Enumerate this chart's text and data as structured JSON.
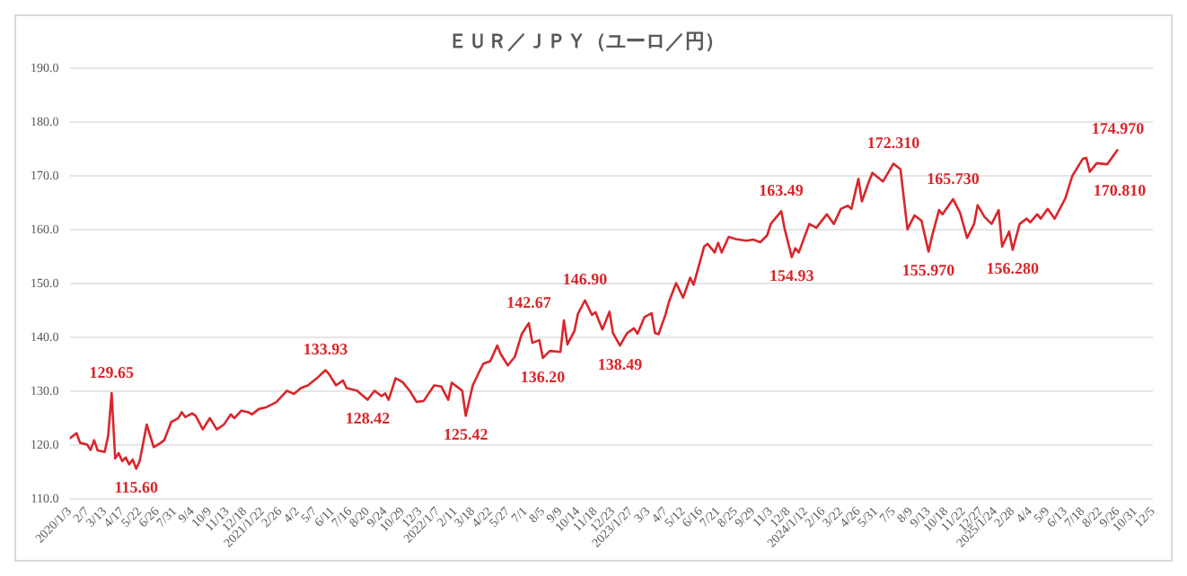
{
  "chart_data": {
    "type": "line",
    "title": "ＥＵＲ／ＪＰＹ（ユーロ／円）",
    "series": [
      {
        "color": "#d9262b",
        "x": [
          "2020-01-03",
          "2020-01-17",
          "2020-01-24",
          "2020-02-07",
          "2020-02-14",
          "2020-02-21",
          "2020-02-28",
          "2020-03-13",
          "2020-03-20",
          "2020-03-27",
          "2020-04-03",
          "2020-04-10",
          "2020-04-17",
          "2020-04-24",
          "2020-05-01",
          "2020-05-08",
          "2020-05-15",
          "2020-05-22",
          "2020-06-05",
          "2020-06-19",
          "2020-07-03",
          "2020-07-10",
          "2020-07-24",
          "2020-08-07",
          "2020-08-14",
          "2020-08-21",
          "2020-09-04",
          "2020-09-11",
          "2020-09-25",
          "2020-10-09",
          "2020-10-23",
          "2020-11-06",
          "2020-11-20",
          "2020-11-27",
          "2020-12-11",
          "2020-12-25",
          "2021-01-01",
          "2021-01-15",
          "2021-01-29",
          "2021-02-19",
          "2021-03-12",
          "2021-03-26",
          "2021-04-09",
          "2021-04-23",
          "2021-05-14",
          "2021-05-28",
          "2021-06-04",
          "2021-06-18",
          "2021-07-02",
          "2021-07-09",
          "2021-07-30",
          "2021-08-20",
          "2021-09-03",
          "2021-09-17",
          "2021-09-24",
          "2021-10-01",
          "2021-10-15",
          "2021-10-29",
          "2021-11-12",
          "2021-11-26",
          "2021-12-10",
          "2021-12-31",
          "2022-01-14",
          "2022-01-28",
          "2022-02-04",
          "2022-02-25",
          "2022-03-04",
          "2022-03-18",
          "2022-04-01",
          "2022-04-08",
          "2022-04-22",
          "2022-05-06",
          "2022-05-13",
          "2022-05-27",
          "2022-06-10",
          "2022-06-24",
          "2022-07-08",
          "2022-07-15",
          "2022-07-29",
          "2022-08-05",
          "2022-08-19",
          "2022-09-09",
          "2022-09-16",
          "2022-09-23",
          "2022-10-07",
          "2022-10-14",
          "2022-10-28",
          "2022-11-11",
          "2022-11-18",
          "2022-12-02",
          "2022-12-16",
          "2022-12-23",
          "2023-01-06",
          "2023-01-20",
          "2023-02-03",
          "2023-02-10",
          "2023-02-24",
          "2023-03-10",
          "2023-03-17",
          "2023-03-24",
          "2023-04-07",
          "2023-04-14",
          "2023-04-28",
          "2023-05-12",
          "2023-05-26",
          "2023-06-02",
          "2023-06-23",
          "2023-06-30",
          "2023-07-14",
          "2023-07-21",
          "2023-07-28",
          "2023-08-11",
          "2023-08-25",
          "2023-09-15",
          "2023-09-29",
          "2023-10-13",
          "2023-10-27",
          "2023-11-03",
          "2023-11-24",
          "2023-12-01",
          "2023-12-15",
          "2023-12-22",
          "2023-12-29",
          "2024-01-19",
          "2024-02-02",
          "2024-02-23",
          "2024-03-08",
          "2024-03-22",
          "2024-04-05",
          "2024-04-12",
          "2024-04-26",
          "2024-05-03",
          "2024-05-17",
          "2024-05-24",
          "2024-06-14",
          "2024-07-05",
          "2024-07-19",
          "2024-08-02",
          "2024-08-16",
          "2024-08-30",
          "2024-09-13",
          "2024-09-20",
          "2024-10-04",
          "2024-10-11",
          "2024-11-01",
          "2024-11-15",
          "2024-11-29",
          "2024-12-13",
          "2024-12-20",
          "2025-01-03",
          "2025-01-17",
          "2025-01-31",
          "2025-02-07",
          "2025-02-21",
          "2025-02-28",
          "2025-03-14",
          "2025-03-28",
          "2025-04-04",
          "2025-04-18",
          "2025-04-25",
          "2025-05-09",
          "2025-05-23",
          "2025-06-13",
          "2025-06-27",
          "2025-07-18",
          "2025-07-25",
          "2025-08-01",
          "2025-08-15",
          "2025-09-05",
          "2025-09-26"
        ],
        "values": [
          121.2,
          122.2,
          120.4,
          120.1,
          119.1,
          120.9,
          119.0,
          118.7,
          121.7,
          129.65,
          117.5,
          118.5,
          117.0,
          117.7,
          116.4,
          117.3,
          115.6,
          117.0,
          123.8,
          119.6,
          120.4,
          120.9,
          124.3,
          125.0,
          126.1,
          125.2,
          125.9,
          125.4,
          122.9,
          125.0,
          122.9,
          123.8,
          125.7,
          125.0,
          126.4,
          126.1,
          125.7,
          126.7,
          127.0,
          128.0,
          130.1,
          129.5,
          130.6,
          131.1,
          132.7,
          133.93,
          133.2,
          131.1,
          132.0,
          130.6,
          130.1,
          128.42,
          130.1,
          129.1,
          129.6,
          128.4,
          132.4,
          131.7,
          130.1,
          128.0,
          128.2,
          131.1,
          130.9,
          128.4,
          131.6,
          130.1,
          125.42,
          131.1,
          133.8,
          135.1,
          135.6,
          138.5,
          136.9,
          134.8,
          136.4,
          140.7,
          142.67,
          139.0,
          139.5,
          136.2,
          137.5,
          137.3,
          143.2,
          138.7,
          141.2,
          144.4,
          146.9,
          144.2,
          144.7,
          141.5,
          144.8,
          140.8,
          138.49,
          140.8,
          141.7,
          140.7,
          143.8,
          144.5,
          140.8,
          140.6,
          144.3,
          146.7,
          150.1,
          147.4,
          151.1,
          149.8,
          156.9,
          157.4,
          155.8,
          157.6,
          155.8,
          158.7,
          158.3,
          158.0,
          158.2,
          157.7,
          159.0,
          161.1,
          163.49,
          160.1,
          154.93,
          156.6,
          155.8,
          161.1,
          160.4,
          162.9,
          161.1,
          163.9,
          164.5,
          163.9,
          169.5,
          165.3,
          169.0,
          170.6,
          169.0,
          172.31,
          171.3,
          160.1,
          162.7,
          161.7,
          155.97,
          158.8,
          163.7,
          162.9,
          165.73,
          163.2,
          158.5,
          161.1,
          164.6,
          162.4,
          161.1,
          163.7,
          156.9,
          159.7,
          156.28,
          161.1,
          162.1,
          161.4,
          162.9,
          162.1,
          163.9,
          162.1,
          165.8,
          170.0,
          173.2,
          173.4,
          170.81,
          172.4,
          172.2,
          174.97
        ]
      }
    ],
    "annotations": [
      {
        "text": "129.65",
        "x": "2020-03-27",
        "y": 129.65
      },
      {
        "text": "115.60",
        "x": "2020-05-15",
        "y": 115.6
      },
      {
        "text": "133.93",
        "x": "2021-05-28",
        "y": 133.93
      },
      {
        "text": "128.42",
        "x": "2021-08-20",
        "y": 128.42
      },
      {
        "text": "125.42",
        "x": "2022-03-04",
        "y": 125.42
      },
      {
        "text": "142.67",
        "x": "2022-07-08",
        "y": 142.67
      },
      {
        "text": "136.20",
        "x": "2022-08-05",
        "y": 136.2
      },
      {
        "text": "146.90",
        "x": "2022-10-28",
        "y": 146.9
      },
      {
        "text": "138.49",
        "x": "2023-01-06",
        "y": 138.49
      },
      {
        "text": "163.49",
        "x": "2023-11-24",
        "y": 163.49
      },
      {
        "text": "154.93",
        "x": "2023-12-15",
        "y": 154.93
      },
      {
        "text": "172.310",
        "x": "2024-07-05",
        "y": 172.31
      },
      {
        "text": "155.970",
        "x": "2024-09-13",
        "y": 155.97
      },
      {
        "text": "165.730",
        "x": "2024-11-01",
        "y": 165.73
      },
      {
        "text": "156.280",
        "x": "2025-02-28",
        "y": 156.28
      },
      {
        "text": "170.810",
        "x": "2025-08-01",
        "y": 170.81
      },
      {
        "text": "174.970",
        "x": "2025-09-26",
        "y": 174.97
      }
    ],
    "xlim": [
      "2020-01-03",
      "2025-12-05"
    ],
    "xticks": [
      {
        "value": "2020-01-03",
        "label": "2020/1/3"
      },
      {
        "value": "2020-02-07",
        "label": "2/7"
      },
      {
        "value": "2020-03-13",
        "label": "3/13"
      },
      {
        "value": "2020-04-17",
        "label": "4/17"
      },
      {
        "value": "2020-05-22",
        "label": "5/22"
      },
      {
        "value": "2020-06-26",
        "label": "6/26"
      },
      {
        "value": "2020-07-31",
        "label": "7/31"
      },
      {
        "value": "2020-09-04",
        "label": "9/4"
      },
      {
        "value": "2020-10-09",
        "label": "10/9"
      },
      {
        "value": "2020-11-13",
        "label": "11/13"
      },
      {
        "value": "2020-12-18",
        "label": "12/18"
      },
      {
        "value": "2021-01-22",
        "label": "2021/1/22"
      },
      {
        "value": "2021-02-26",
        "label": "2/26"
      },
      {
        "value": "2021-04-02",
        "label": "4/2"
      },
      {
        "value": "2021-05-07",
        "label": "5/7"
      },
      {
        "value": "2021-06-11",
        "label": "6/11"
      },
      {
        "value": "2021-07-16",
        "label": "7/16"
      },
      {
        "value": "2021-08-20",
        "label": "8/20"
      },
      {
        "value": "2021-09-24",
        "label": "9/24"
      },
      {
        "value": "2021-10-29",
        "label": "10/29"
      },
      {
        "value": "2021-12-03",
        "label": "12/3"
      },
      {
        "value": "2022-01-07",
        "label": "2022/1/7"
      },
      {
        "value": "2022-02-11",
        "label": "2/11"
      },
      {
        "value": "2022-03-18",
        "label": "3/18"
      },
      {
        "value": "2022-04-22",
        "label": "4/22"
      },
      {
        "value": "2022-05-27",
        "label": "5/27"
      },
      {
        "value": "2022-07-01",
        "label": "7/1"
      },
      {
        "value": "2022-08-05",
        "label": "8/5"
      },
      {
        "value": "2022-09-09",
        "label": "9/9"
      },
      {
        "value": "2022-10-14",
        "label": "10/14"
      },
      {
        "value": "2022-11-18",
        "label": "11/18"
      },
      {
        "value": "2022-12-23",
        "label": "12/23"
      },
      {
        "value": "2023-01-27",
        "label": "2023/1/27"
      },
      {
        "value": "2023-03-03",
        "label": "3/3"
      },
      {
        "value": "2023-04-07",
        "label": "4/7"
      },
      {
        "value": "2023-05-12",
        "label": "5/12"
      },
      {
        "value": "2023-06-16",
        "label": "6/16"
      },
      {
        "value": "2023-07-21",
        "label": "7/21"
      },
      {
        "value": "2023-08-25",
        "label": "8/25"
      },
      {
        "value": "2023-09-29",
        "label": "9/29"
      },
      {
        "value": "2023-11-03",
        "label": "11/3"
      },
      {
        "value": "2023-12-08",
        "label": "12/8"
      },
      {
        "value": "2024-01-12",
        "label": "2024/1/12"
      },
      {
        "value": "2024-02-16",
        "label": "2/16"
      },
      {
        "value": "2024-03-22",
        "label": "3/22"
      },
      {
        "value": "2024-04-26",
        "label": "4/26"
      },
      {
        "value": "2024-05-31",
        "label": "5/31"
      },
      {
        "value": "2024-07-05",
        "label": "7/5"
      },
      {
        "value": "2024-08-09",
        "label": "8/9"
      },
      {
        "value": "2024-09-13",
        "label": "9/13"
      },
      {
        "value": "2024-10-18",
        "label": "10/18"
      },
      {
        "value": "2024-11-22",
        "label": "11/22"
      },
      {
        "value": "2024-12-27",
        "label": "12/27"
      },
      {
        "value": "2025-01-24",
        "label": "2025/1/24"
      },
      {
        "value": "2025-02-28",
        "label": "2/28"
      },
      {
        "value": "2025-04-04",
        "label": "4/4"
      },
      {
        "value": "2025-05-09",
        "label": "5/9"
      },
      {
        "value": "2025-06-13",
        "label": "6/13"
      },
      {
        "value": "2025-07-18",
        "label": "7/18"
      },
      {
        "value": "2025-08-22",
        "label": "8/22"
      },
      {
        "value": "2025-09-26",
        "label": "9/26"
      },
      {
        "value": "2025-10-31",
        "label": "10/31"
      },
      {
        "value": "2025-12-05",
        "label": "12/5"
      }
    ],
    "ylim": [
      110,
      190
    ],
    "yticks": [
      {
        "value": 110,
        "label": "110.0"
      },
      {
        "value": 120,
        "label": "120.0"
      },
      {
        "value": 130,
        "label": "130.0"
      },
      {
        "value": 140,
        "label": "140.0"
      },
      {
        "value": 150,
        "label": "150.0"
      },
      {
        "value": 160,
        "label": "160.0"
      },
      {
        "value": 170,
        "label": "170.0"
      },
      {
        "value": 180,
        "label": "180.0"
      },
      {
        "value": 190,
        "label": "190.0"
      }
    ],
    "grid": "y",
    "legend": false
  }
}
